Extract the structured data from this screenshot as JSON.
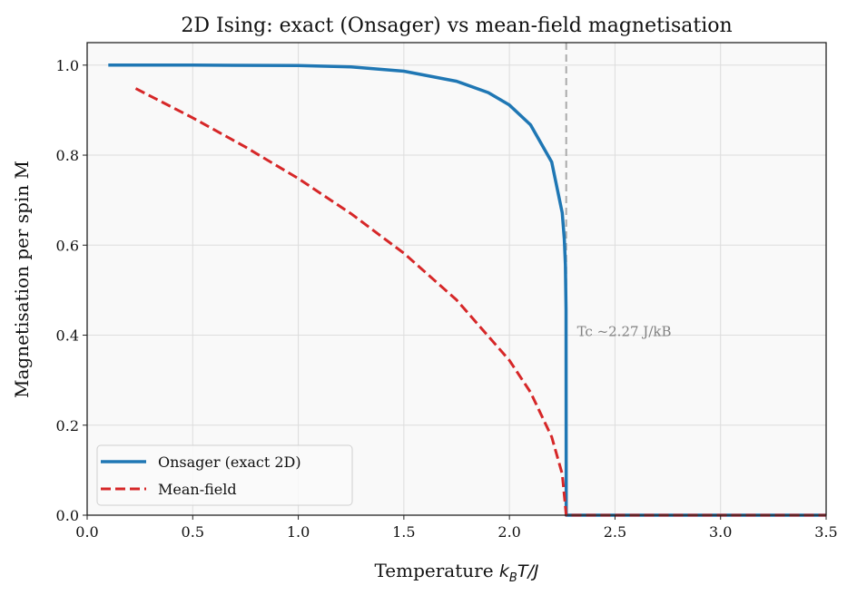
{
  "chart_data": {
    "type": "line",
    "title": "2D Ising: exact (Onsager) vs mean-field magnetisation",
    "xlabel": "Temperature k_B T/J",
    "ylabel": "Magnetisation per spin M",
    "xlim": [
      0,
      3.5
    ],
    "ylim": [
      0,
      1.05
    ],
    "xticks": [
      "0.0",
      "0.5",
      "1.0",
      "1.5",
      "2.0",
      "2.5",
      "3.0",
      "3.5"
    ],
    "yticks": [
      "0.0",
      "0.2",
      "0.4",
      "0.6",
      "0.8",
      "1.0"
    ],
    "grid": true,
    "legend_position": "lower-left",
    "series": [
      {
        "name": "Onsager (exact 2D)",
        "color": "#1f77b4",
        "style": "solid",
        "x": [
          0.1,
          0.5,
          1.0,
          1.25,
          1.5,
          1.75,
          1.9,
          2.0,
          2.1,
          2.2,
          2.25,
          2.26,
          2.265,
          2.268,
          2.2691,
          2.3,
          2.5,
          3.0,
          3.5
        ],
        "y": [
          1.0,
          1.0,
          0.9993,
          0.996,
          0.9866,
          0.9642,
          0.939,
          0.9113,
          0.8675,
          0.7847,
          0.6718,
          0.6136,
          0.556,
          0.457,
          0,
          0,
          0,
          0,
          0
        ]
      },
      {
        "name": "Mean-field",
        "color": "#d62728",
        "style": "dashed",
        "x": [
          0.23,
          0.5,
          0.75,
          1.0,
          1.25,
          1.5,
          1.75,
          2.0,
          2.1,
          2.2,
          2.25,
          2.269,
          2.5,
          3.0,
          3.5
        ],
        "y": [
          0.948,
          0.883,
          0.818,
          0.748,
          0.67,
          0.582,
          0.478,
          0.344,
          0.273,
          0.174,
          0.0915,
          0,
          0,
          0,
          0
        ]
      }
    ],
    "reference_line": {
      "x": 2.269,
      "color": "#aaaaaa",
      "style": "dashed"
    },
    "annotation": {
      "text": "Tc ~2.27 J/kB",
      "x": 2.32,
      "y": 0.41
    }
  }
}
